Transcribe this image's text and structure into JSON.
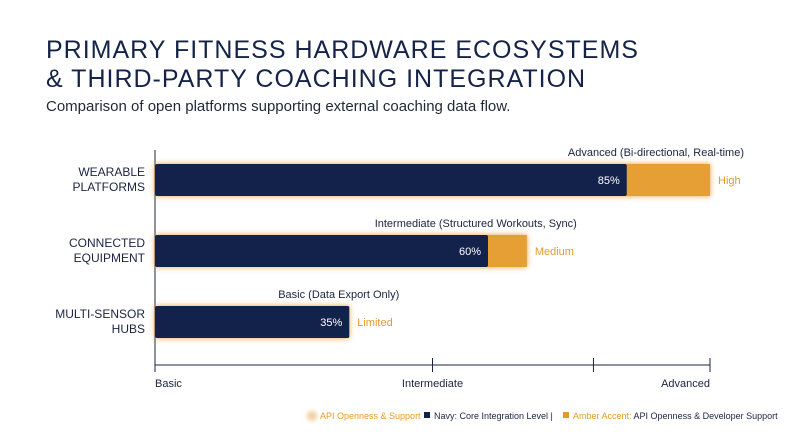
{
  "title_lines": [
    "PRIMARY FITNESS HARDWARE ECOSYSTEMS",
    "& THIRD-PARTY COACHING INTEGRATION"
  ],
  "subtitle": "Comparison of open platforms supporting external coaching data flow.",
  "colors": {
    "navy": "#13224a",
    "amber": "#e49a2a",
    "text": "#1a2440"
  },
  "chart_data": {
    "type": "bar",
    "orientation": "horizontal",
    "categories": [
      {
        "lines": [
          "WEARABLE",
          "PLATFORMS"
        ],
        "core": 85,
        "openness": 100,
        "value_label": "85%",
        "level_label": "Advanced (Bi-directional, Real-time)",
        "tier": "High"
      },
      {
        "lines": [
          "CONNECTED",
          "EQUIPMENT"
        ],
        "core": 60,
        "openness": 67,
        "value_label": "60%",
        "level_label": "Intermediate (Structured Workouts, Sync)",
        "tier": "Medium"
      },
      {
        "lines": [
          "MULTI-SENSOR",
          "HUBS"
        ],
        "core": 35,
        "openness": 35,
        "value_label": "35%",
        "level_label": "Basic (Data Export Only)",
        "tier": "Limited"
      }
    ],
    "xlim": [
      0,
      100
    ],
    "x_ticks": [
      {
        "value": 0,
        "label": "Basic"
      },
      {
        "value": 50,
        "label": "Intermediate"
      },
      {
        "value": 100,
        "label": "Advanced"
      }
    ],
    "minor_ticks": [
      0,
      50,
      79,
      100
    ],
    "legend": [
      {
        "text": "API Openness & Support",
        "style": "glow"
      },
      {
        "text": "Navy: Core Integration Level |",
        "style": "navy"
      },
      {
        "text": "Amber Accent: API Openness & Developer Support",
        "style": "amber",
        "prefix": "Amber Accent:",
        "rest": " API Openness & Developer Support"
      }
    ],
    "grid": false,
    "legend_position": "bottom-right"
  }
}
